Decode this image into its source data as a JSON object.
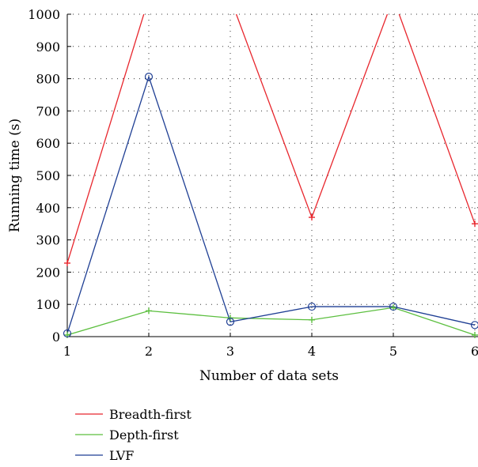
{
  "chart_data": {
    "type": "line",
    "title": "",
    "xlabel": "Number of data sets",
    "ylabel": "Running time (s)",
    "x": [
      1,
      2,
      3,
      4,
      5,
      6
    ],
    "xlim": [
      1,
      6
    ],
    "ylim": [
      0,
      1000
    ],
    "x_ticks": [
      "1",
      "2",
      "3",
      "4",
      "5",
      "6"
    ],
    "y_ticks": [
      "0",
      "100",
      "200",
      "300",
      "400",
      "500",
      "600",
      "700",
      "800",
      "900",
      "1000"
    ],
    "grid": true,
    "legend_position": "bottom-left, below plot",
    "series": [
      {
        "name": "Breadth-first",
        "color": "#e8262d",
        "marker": "plus",
        "values": [
          228,
          1050,
          1050,
          370,
          1050,
          350
        ]
      },
      {
        "name": "Depth-first",
        "color": "#5cbf3f",
        "marker": "plus",
        "values": [
          5,
          80,
          58,
          52,
          90,
          5
        ]
      },
      {
        "name": "LVF",
        "color": "#1f3f94",
        "marker": "circle",
        "values": [
          10,
          806,
          46,
          93,
          93,
          36
        ]
      }
    ]
  }
}
